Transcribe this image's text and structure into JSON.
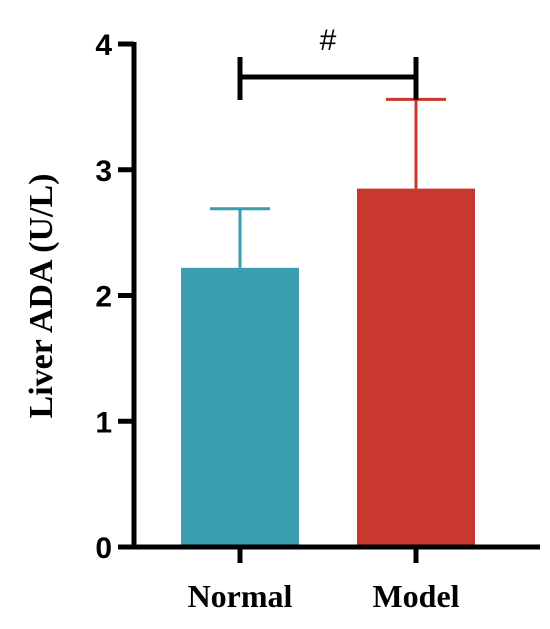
{
  "chart_data": {
    "type": "bar",
    "title": "",
    "xlabel": "",
    "ylabel": "Liver ADA (U/L)",
    "ylim": [
      0,
      4
    ],
    "yticks": [
      "0",
      "1",
      "2",
      "3",
      "4"
    ],
    "grid": false,
    "categories": [
      "Normal",
      "Model"
    ],
    "values": [
      2.22,
      2.85
    ],
    "errors": [
      0.47,
      0.71
    ],
    "colors": [
      "#3a9db0",
      "#c8382e"
    ],
    "significance": {
      "label": "#",
      "between": [
        "Normal",
        "Model"
      ]
    }
  }
}
